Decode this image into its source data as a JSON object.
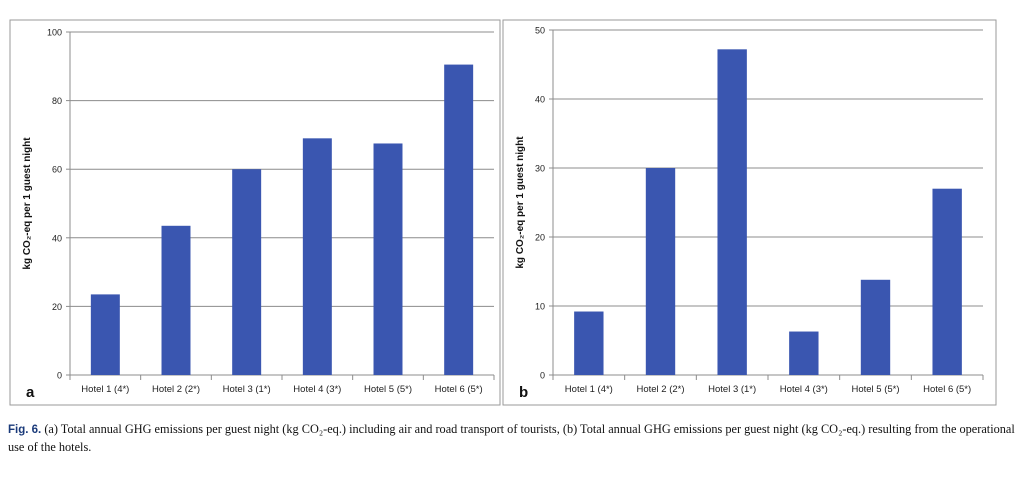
{
  "chart_data": [
    {
      "type": "bar",
      "panel_label": "a",
      "ylabel": "kg CO₂-eq per 1 guest night",
      "categories": [
        "Hotel 1 (4*)",
        "Hotel 2 (2*)",
        "Hotel 3 (1*)",
        "Hotel 4 (3*)",
        "Hotel 5 (5*)",
        "Hotel 6 (5*)"
      ],
      "values": [
        23.5,
        43.5,
        60,
        69,
        67.5,
        90.5
      ],
      "ylim": [
        0,
        100
      ],
      "yticks": [
        0,
        20,
        40,
        60,
        80,
        100
      ],
      "grid": true,
      "color": "#3a56b0"
    },
    {
      "type": "bar",
      "panel_label": "b",
      "ylabel": "kg CO₂-eq per 1 guest night",
      "categories": [
        "Hotel 1 (4*)",
        "Hotel 2 (2*)",
        "Hotel 3 (1*)",
        "Hotel 4 (3*)",
        "Hotel 5 (5*)",
        "Hotel 6 (5*)"
      ],
      "values": [
        9.2,
        30,
        47.2,
        6.3,
        13.8,
        27
      ],
      "ylim": [
        0,
        50
      ],
      "yticks": [
        0,
        10,
        20,
        30,
        40,
        50
      ],
      "grid": true,
      "color": "#3a56b0"
    }
  ],
  "caption": {
    "label": "Fig. 6.",
    "text": "(a) Total annual GHG emissions per guest night (kg CO₂-eq.) including air and road transport of tourists, (b) Total annual GHG emissions per guest night (kg CO₂-eq.) resulting from the operational use of the hotels."
  }
}
